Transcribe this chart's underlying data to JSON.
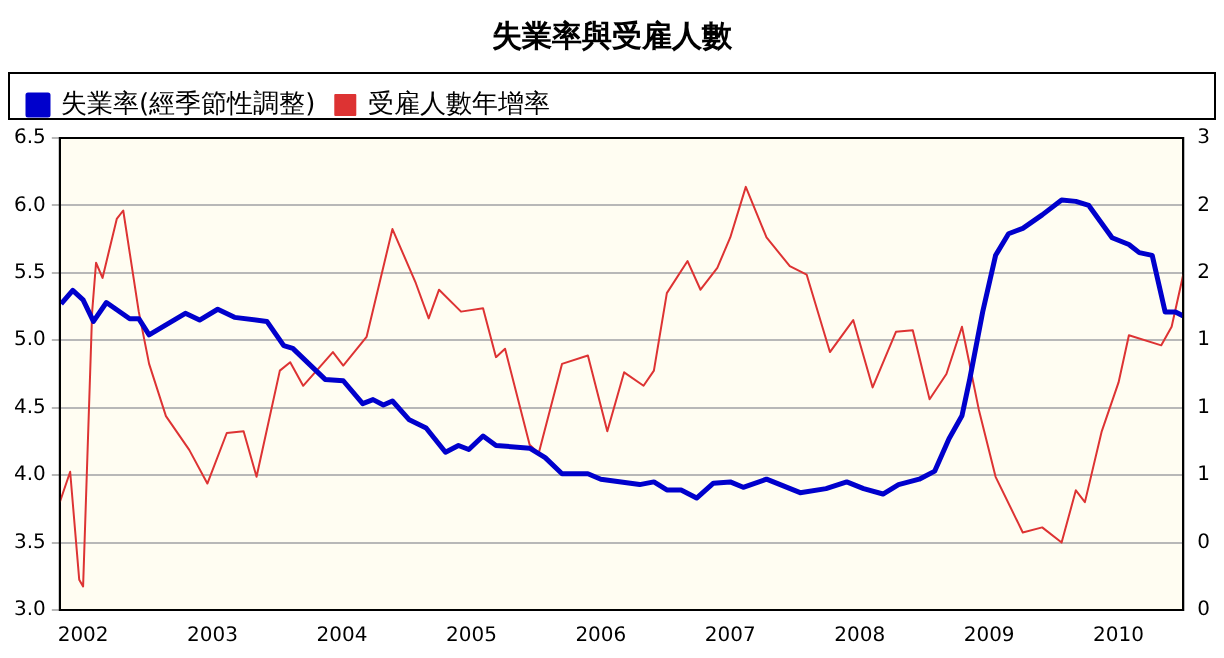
{
  "chart_data": {
    "type": "line",
    "title": "失業率與受雇人數",
    "legend": "top left",
    "grid": "y",
    "marker": "none",
    "line_style": "solid",
    "xlim": [
      2001.82,
      2010.5
    ],
    "xticks": [
      2002,
      2003,
      2004,
      2005,
      2006,
      2007,
      2008,
      2009,
      2010
    ],
    "ylim": [
      3.0,
      6.5
    ],
    "yticks": [
      {
        "value": 3,
        "label": "3.0"
      },
      3.5,
      {
        "value": 4,
        "label": "4.0"
      },
      4.5,
      {
        "value": 5,
        "label": "5.0"
      },
      5.5,
      {
        "value": 6,
        "label": "6.0"
      },
      6.5
    ],
    "y2lim": [
      -0.2,
      2.6
    ],
    "y2ticks": [
      {
        "value": -0.2,
        "label": "0"
      },
      {
        "value": 0.2,
        "label": "0"
      },
      {
        "value": 0.6,
        "label": "1"
      },
      {
        "value": 1.0,
        "label": "1"
      },
      {
        "value": 1.4,
        "label": "1"
      },
      {
        "value": 1.8,
        "label": "2"
      },
      {
        "value": 2.2,
        "label": "2"
      },
      {
        "value": 2.6,
        "label": "3"
      }
    ],
    "series": [
      {
        "name": "失業率(經季節性調整)",
        "color": "#0000cc",
        "axis": "y",
        "x": [
          2001.83,
          2001.92,
          2002.0,
          2002.08,
          2002.18,
          2002.36,
          2002.43,
          2002.51,
          2002.79,
          2002.9,
          2003.04,
          2003.17,
          2003.42,
          2003.55,
          2003.62,
          2003.87,
          2004.01,
          2004.16,
          2004.24,
          2004.32,
          2004.39,
          2004.52,
          2004.65,
          2004.8,
          2004.9,
          2004.98,
          2005.09,
          2005.19,
          2005.45,
          2005.57,
          2005.7,
          2005.9,
          2006.0,
          2006.3,
          2006.41,
          2006.51,
          2006.62,
          2006.74,
          2006.87,
          2007.0,
          2007.1,
          2007.28,
          2007.54,
          2007.74,
          2007.9,
          2008.03,
          2008.18,
          2008.3,
          2008.46,
          2008.58,
          2008.69,
          2008.79,
          2008.85,
          2008.95,
          2009.05,
          2009.15,
          2009.26,
          2009.41,
          2009.56,
          2009.67,
          2009.77,
          2009.95,
          2010.08,
          2010.16,
          2010.26,
          2010.36,
          2010.44,
          2010.5
        ],
        "values": [
          5.27,
          5.37,
          5.3,
          5.14,
          5.28,
          5.16,
          5.16,
          5.04,
          5.2,
          5.15,
          5.23,
          5.17,
          5.14,
          4.96,
          4.94,
          4.71,
          4.7,
          4.53,
          4.56,
          4.52,
          4.55,
          4.41,
          4.35,
          4.17,
          4.22,
          4.19,
          4.29,
          4.22,
          4.2,
          4.13,
          4.01,
          4.01,
          3.97,
          3.93,
          3.95,
          3.89,
          3.89,
          3.83,
          3.94,
          3.95,
          3.91,
          3.97,
          3.87,
          3.9,
          3.95,
          3.9,
          3.86,
          3.93,
          3.97,
          4.03,
          4.27,
          4.44,
          4.71,
          5.21,
          5.63,
          5.79,
          5.83,
          5.93,
          6.04,
          6.03,
          6.0,
          5.76,
          5.71,
          5.65,
          5.63,
          5.21,
          5.21,
          5.18
        ]
      },
      {
        "name": "受雇人數年增率",
        "color": "#dd3333",
        "axis": "y2",
        "x": [
          2001.82,
          2001.9,
          2001.97,
          2002.0,
          2002.07,
          2002.1,
          2002.15,
          2002.26,
          2002.31,
          2002.43,
          2002.51,
          2002.64,
          2002.82,
          2002.96,
          2003.11,
          2003.24,
          2003.34,
          2003.52,
          2003.6,
          2003.7,
          2003.93,
          2004.01,
          2004.19,
          2004.39,
          2004.57,
          2004.67,
          2004.75,
          2004.92,
          2005.09,
          2005.19,
          2005.26,
          2005.45,
          2005.52,
          2005.7,
          2005.9,
          2006.05,
          2006.18,
          2006.33,
          2006.41,
          2006.51,
          2006.67,
          2006.77,
          2006.9,
          2007.0,
          2007.12,
          2007.28,
          2007.46,
          2007.59,
          2007.77,
          2007.95,
          2008.1,
          2008.28,
          2008.41,
          2008.54,
          2008.67,
          2008.79,
          2008.92,
          2009.05,
          2009.26,
          2009.41,
          2009.56,
          2009.67,
          2009.74,
          2009.87,
          2010.0,
          2010.08,
          2010.33,
          2010.41,
          2010.5
        ],
        "values": [
          0.44,
          0.62,
          -0.02,
          -0.06,
          1.57,
          1.86,
          1.77,
          2.12,
          2.17,
          1.57,
          1.26,
          0.95,
          0.75,
          0.55,
          0.85,
          0.86,
          0.59,
          1.22,
          1.27,
          1.13,
          1.33,
          1.25,
          1.42,
          2.06,
          1.74,
          1.53,
          1.7,
          1.57,
          1.59,
          1.3,
          1.35,
          0.78,
          0.73,
          1.26,
          1.31,
          0.86,
          1.21,
          1.13,
          1.22,
          1.68,
          1.87,
          1.7,
          1.83,
          2.01,
          2.31,
          2.01,
          1.84,
          1.79,
          1.33,
          1.52,
          1.12,
          1.45,
          1.46,
          1.05,
          1.2,
          1.48,
          0.99,
          0.59,
          0.26,
          0.29,
          0.2,
          0.51,
          0.44,
          0.86,
          1.15,
          1.43,
          1.37,
          1.48,
          1.79
        ]
      }
    ]
  }
}
